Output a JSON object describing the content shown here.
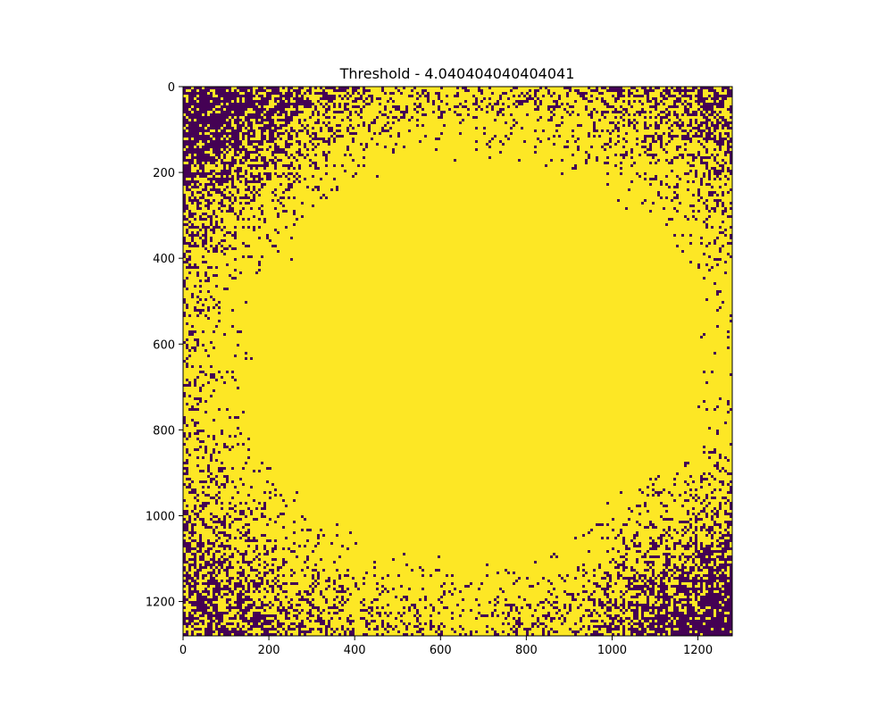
{
  "chart_data": {
    "type": "heatmap",
    "title": "Threshold - 4.040404040404041",
    "xlabel": "",
    "ylabel": "",
    "xlim": [
      0,
      1280
    ],
    "ylim": [
      1280,
      0
    ],
    "x_ticks": [
      "0",
      "200",
      "400",
      "600",
      "800",
      "1000",
      "1200"
    ],
    "y_ticks": [
      "0",
      "200",
      "400",
      "600",
      "800",
      "1000",
      "1200"
    ],
    "values_description": "binary mask (0/1) on a 1280x1280 grid",
    "value_levels": [
      0,
      1
    ],
    "colormap": {
      "0": "#440154",
      "1": "#fde725"
    },
    "grid": false,
    "legend": "none"
  }
}
